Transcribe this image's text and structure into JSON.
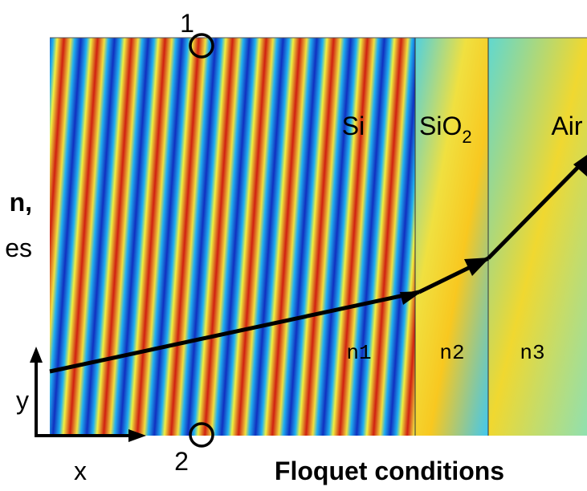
{
  "markers": {
    "top": "1",
    "bottom": "2"
  },
  "regions": {
    "si": "Si",
    "sio2": {
      "text": "SiO",
      "subscript": "2"
    },
    "air": "Air"
  },
  "indices": [
    "n1",
    "n2",
    "n3"
  ],
  "axes": {
    "x": "x",
    "y": "y"
  },
  "left_text": [
    "n,",
    "es"
  ],
  "caption": "Floquet conditions"
}
